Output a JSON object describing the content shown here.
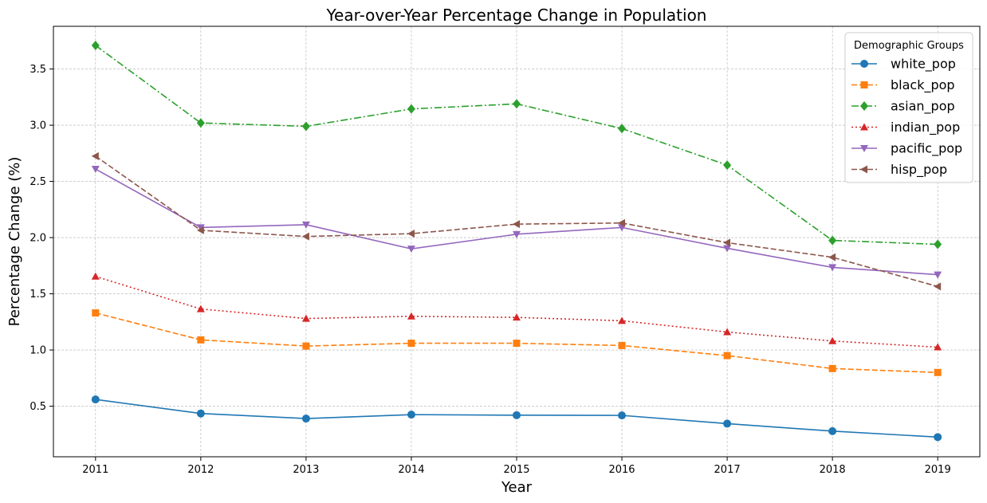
{
  "chart_data": {
    "type": "line",
    "title": "Year-over-Year Percentage Change in Population",
    "xlabel": "Year",
    "ylabel": "Percentage Change (%)",
    "x": [
      2011,
      2012,
      2013,
      2014,
      2015,
      2016,
      2017,
      2018,
      2019
    ],
    "x_ticks": [
      "2011",
      "2012",
      "2013",
      "2014",
      "2015",
      "2016",
      "2017",
      "2018",
      "2019"
    ],
    "y_ticks": [
      "0.5",
      "1.0",
      "1.5",
      "2.0",
      "2.5",
      "3.0",
      "3.5"
    ],
    "xlim": [
      2010.6,
      2019.4
    ],
    "ylim": [
      0.05,
      3.88
    ],
    "grid": true,
    "legend": {
      "title": "Demographic Groups",
      "placement": "top-right"
    },
    "series": [
      {
        "name": "white_pop",
        "color": "#1f77b4",
        "marker": "circle",
        "dash": "solid",
        "values": [
          0.56,
          0.435,
          0.39,
          0.425,
          0.42,
          0.418,
          0.345,
          0.278,
          0.225
        ]
      },
      {
        "name": "black_pop",
        "color": "#ff7f0e",
        "marker": "square",
        "dash": "dashed",
        "values": [
          1.33,
          1.09,
          1.035,
          1.06,
          1.06,
          1.04,
          0.95,
          0.835,
          0.8
        ]
      },
      {
        "name": "asian_pop",
        "color": "#2ca02c",
        "marker": "diamond",
        "dash": "dashdot",
        "values": [
          3.71,
          3.02,
          2.99,
          3.145,
          3.19,
          2.97,
          2.645,
          1.975,
          1.94
        ]
      },
      {
        "name": "indian_pop",
        "color": "#d62728",
        "marker": "triangle-up",
        "dash": "dotted",
        "values": [
          1.655,
          1.365,
          1.28,
          1.3,
          1.29,
          1.26,
          1.16,
          1.08,
          1.025
        ]
      },
      {
        "name": "pacific_pop",
        "color": "#9467bd",
        "marker": "triangle-down",
        "dash": "solid",
        "values": [
          2.61,
          2.09,
          2.115,
          1.9,
          2.03,
          2.09,
          1.905,
          1.735,
          1.67
        ]
      },
      {
        "name": "hisp_pop",
        "color": "#8c564b",
        "marker": "triangle-left",
        "dash": "dashed",
        "values": [
          2.725,
          2.065,
          2.01,
          2.035,
          2.12,
          2.13,
          1.955,
          1.825,
          1.565
        ]
      }
    ]
  }
}
